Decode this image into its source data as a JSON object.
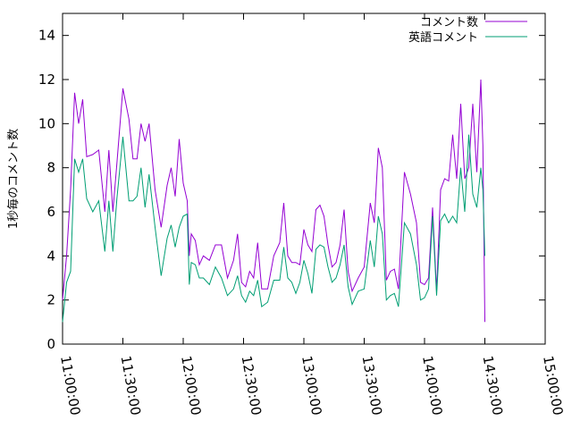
{
  "chart_data": {
    "type": "line",
    "title": "",
    "xlabel": "",
    "ylabel": "1秒毎のコメント数",
    "xlim": [
      "11:00:00",
      "15:00:00"
    ],
    "ylim": [
      0,
      15
    ],
    "x_ticks": [
      "11:00:00",
      "11:30:00",
      "12:00:00",
      "12:30:00",
      "13:00:00",
      "13:30:00",
      "14:00:00",
      "14:30:00",
      "15:00:00"
    ],
    "y_ticks": [
      0,
      2,
      4,
      6,
      8,
      10,
      12,
      14
    ],
    "grid": false,
    "legend_position": "top-right",
    "series": [
      {
        "name": "コメント数",
        "color": "#9400d3",
        "points": [
          [
            "11:00:00",
            2.0
          ],
          [
            "11:02:00",
            4.0
          ],
          [
            "11:04:00",
            7.0
          ],
          [
            "11:06:00",
            11.4
          ],
          [
            "11:08:00",
            10.0
          ],
          [
            "11:10:00",
            11.1
          ],
          [
            "11:12:00",
            8.5
          ],
          [
            "11:15:00",
            8.6
          ],
          [
            "11:18:00",
            8.8
          ],
          [
            "11:21:00",
            6.0
          ],
          [
            "11:23:00",
            8.8
          ],
          [
            "11:25:00",
            6.0
          ],
          [
            "11:27:00",
            8.2
          ],
          [
            "11:30:00",
            11.6
          ],
          [
            "11:33:00",
            10.2
          ],
          [
            "11:35:00",
            8.4
          ],
          [
            "11:37:00",
            8.4
          ],
          [
            "11:39:00",
            10.0
          ],
          [
            "11:41:00",
            9.2
          ],
          [
            "11:43:00",
            10.0
          ],
          [
            "11:46:00",
            7.0
          ],
          [
            "11:49:00",
            5.3
          ],
          [
            "11:52:00",
            7.2
          ],
          [
            "11:54:00",
            8.0
          ],
          [
            "11:56:00",
            6.7
          ],
          [
            "11:58:00",
            9.3
          ],
          [
            "12:00:00",
            7.3
          ],
          [
            "12:02:00",
            6.5
          ],
          [
            "12:03:00",
            4.0
          ],
          [
            "12:04:00",
            5.0
          ],
          [
            "12:06:00",
            4.7
          ],
          [
            "12:08:00",
            3.6
          ],
          [
            "12:10:00",
            4.0
          ],
          [
            "12:13:00",
            3.8
          ],
          [
            "12:16:00",
            4.5
          ],
          [
            "12:19:00",
            4.5
          ],
          [
            "12:22:00",
            3.0
          ],
          [
            "12:25:00",
            3.8
          ],
          [
            "12:27:00",
            5.0
          ],
          [
            "12:29:00",
            2.8
          ],
          [
            "12:31:00",
            2.6
          ],
          [
            "12:33:00",
            3.3
          ],
          [
            "12:35:00",
            3.0
          ],
          [
            "12:37:00",
            4.6
          ],
          [
            "12:39:00",
            2.5
          ],
          [
            "12:42:00",
            2.5
          ],
          [
            "12:45:00",
            4.0
          ],
          [
            "12:48:00",
            4.6
          ],
          [
            "12:50:00",
            6.4
          ],
          [
            "12:52:00",
            4.0
          ],
          [
            "12:54:00",
            3.7
          ],
          [
            "12:56:00",
            3.7
          ],
          [
            "12:58:00",
            3.6
          ],
          [
            "13:00:00",
            5.2
          ],
          [
            "13:02:00",
            4.5
          ],
          [
            "13:04:00",
            4.2
          ],
          [
            "13:06:00",
            6.1
          ],
          [
            "13:08:00",
            6.3
          ],
          [
            "13:10:00",
            5.8
          ],
          [
            "13:12:00",
            4.5
          ],
          [
            "13:14:00",
            3.5
          ],
          [
            "13:16:00",
            3.7
          ],
          [
            "13:18:00",
            4.5
          ],
          [
            "13:20:00",
            6.1
          ],
          [
            "13:22:00",
            3.3
          ],
          [
            "13:24:00",
            2.4
          ],
          [
            "13:27:00",
            3.0
          ],
          [
            "13:30:00",
            3.5
          ],
          [
            "13:33:00",
            6.4
          ],
          [
            "13:35:00",
            5.5
          ],
          [
            "13:37:00",
            8.9
          ],
          [
            "13:39:00",
            8.0
          ],
          [
            "13:41:00",
            2.9
          ],
          [
            "13:43:00",
            3.3
          ],
          [
            "13:45:00",
            3.4
          ],
          [
            "13:47:00",
            2.5
          ],
          [
            "13:50:00",
            7.8
          ],
          [
            "13:53:00",
            6.8
          ],
          [
            "13:56:00",
            5.5
          ],
          [
            "13:58:00",
            2.8
          ],
          [
            "14:00:00",
            2.7
          ],
          [
            "14:02:00",
            3.0
          ],
          [
            "14:04:00",
            6.2
          ],
          [
            "14:06:00",
            2.4
          ],
          [
            "14:08:00",
            7.0
          ],
          [
            "14:10:00",
            7.5
          ],
          [
            "14:12:00",
            7.4
          ],
          [
            "14:14:00",
            9.5
          ],
          [
            "14:16:00",
            7.5
          ],
          [
            "14:18:00",
            10.9
          ],
          [
            "14:20:00",
            7.5
          ],
          [
            "14:22:00",
            8.0
          ],
          [
            "14:24:00",
            10.9
          ],
          [
            "14:26:00",
            7.8
          ],
          [
            "14:28:00",
            12.0
          ],
          [
            "14:29:00",
            9.0
          ],
          [
            "14:30:00",
            1.0
          ]
        ]
      },
      {
        "name": "英語コメント",
        "color": "#009e73",
        "points": [
          [
            "11:00:00",
            1.0
          ],
          [
            "11:02:00",
            2.8
          ],
          [
            "11:04:00",
            3.3
          ],
          [
            "11:06:00",
            8.4
          ],
          [
            "11:08:00",
            7.8
          ],
          [
            "11:10:00",
            8.4
          ],
          [
            "11:12:00",
            6.6
          ],
          [
            "11:15:00",
            6.0
          ],
          [
            "11:18:00",
            6.5
          ],
          [
            "11:21:00",
            4.2
          ],
          [
            "11:23:00",
            6.5
          ],
          [
            "11:25:00",
            4.2
          ],
          [
            "11:27:00",
            6.6
          ],
          [
            "11:30:00",
            9.4
          ],
          [
            "11:33:00",
            6.5
          ],
          [
            "11:35:00",
            6.5
          ],
          [
            "11:37:00",
            6.7
          ],
          [
            "11:39:00",
            8.0
          ],
          [
            "11:41:00",
            6.2
          ],
          [
            "11:43:00",
            7.7
          ],
          [
            "11:46:00",
            5.3
          ],
          [
            "11:49:00",
            3.1
          ],
          [
            "11:52:00",
            4.8
          ],
          [
            "11:54:00",
            5.4
          ],
          [
            "11:56:00",
            4.4
          ],
          [
            "11:58:00",
            5.3
          ],
          [
            "12:00:00",
            5.8
          ],
          [
            "12:02:00",
            5.9
          ],
          [
            "12:03:00",
            2.7
          ],
          [
            "12:04:00",
            3.7
          ],
          [
            "12:06:00",
            3.6
          ],
          [
            "12:08:00",
            3.0
          ],
          [
            "12:10:00",
            3.0
          ],
          [
            "12:13:00",
            2.7
          ],
          [
            "12:16:00",
            3.5
          ],
          [
            "12:19:00",
            3.0
          ],
          [
            "12:22:00",
            2.2
          ],
          [
            "12:25:00",
            2.5
          ],
          [
            "12:27:00",
            3.1
          ],
          [
            "12:29:00",
            2.2
          ],
          [
            "12:31:00",
            1.9
          ],
          [
            "12:33:00",
            2.4
          ],
          [
            "12:35:00",
            2.2
          ],
          [
            "12:37:00",
            2.9
          ],
          [
            "12:39:00",
            1.7
          ],
          [
            "12:42:00",
            1.9
          ],
          [
            "12:45:00",
            2.9
          ],
          [
            "12:48:00",
            2.9
          ],
          [
            "12:50:00",
            4.4
          ],
          [
            "12:52:00",
            3.0
          ],
          [
            "12:54:00",
            2.8
          ],
          [
            "12:56:00",
            2.3
          ],
          [
            "12:58:00",
            2.8
          ],
          [
            "13:00:00",
            3.8
          ],
          [
            "13:02:00",
            3.2
          ],
          [
            "13:04:00",
            2.3
          ],
          [
            "13:06:00",
            4.3
          ],
          [
            "13:08:00",
            4.5
          ],
          [
            "13:10:00",
            4.4
          ],
          [
            "13:12:00",
            3.5
          ],
          [
            "13:14:00",
            2.8
          ],
          [
            "13:16:00",
            3.0
          ],
          [
            "13:18:00",
            3.6
          ],
          [
            "13:20:00",
            4.5
          ],
          [
            "13:22:00",
            2.6
          ],
          [
            "13:24:00",
            1.8
          ],
          [
            "13:27:00",
            2.4
          ],
          [
            "13:30:00",
            2.5
          ],
          [
            "13:33:00",
            4.7
          ],
          [
            "13:35:00",
            3.5
          ],
          [
            "13:37:00",
            5.8
          ],
          [
            "13:39:00",
            5.0
          ],
          [
            "13:41:00",
            2.0
          ],
          [
            "13:43:00",
            2.2
          ],
          [
            "13:45:00",
            2.3
          ],
          [
            "13:47:00",
            1.7
          ],
          [
            "13:50:00",
            5.5
          ],
          [
            "13:53:00",
            5.0
          ],
          [
            "13:56:00",
            3.6
          ],
          [
            "13:58:00",
            2.0
          ],
          [
            "14:00:00",
            2.1
          ],
          [
            "14:02:00",
            2.5
          ],
          [
            "14:04:00",
            5.8
          ],
          [
            "14:06:00",
            2.2
          ],
          [
            "14:08:00",
            5.6
          ],
          [
            "14:10:00",
            5.9
          ],
          [
            "14:12:00",
            5.5
          ],
          [
            "14:14:00",
            5.8
          ],
          [
            "14:16:00",
            5.5
          ],
          [
            "14:18:00",
            8.0
          ],
          [
            "14:20:00",
            6.0
          ],
          [
            "14:22:00",
            9.5
          ],
          [
            "14:24:00",
            6.8
          ],
          [
            "14:26:00",
            6.2
          ],
          [
            "14:28:00",
            8.0
          ],
          [
            "14:29:00",
            7.0
          ],
          [
            "14:30:00",
            4.0
          ]
        ]
      }
    ]
  }
}
